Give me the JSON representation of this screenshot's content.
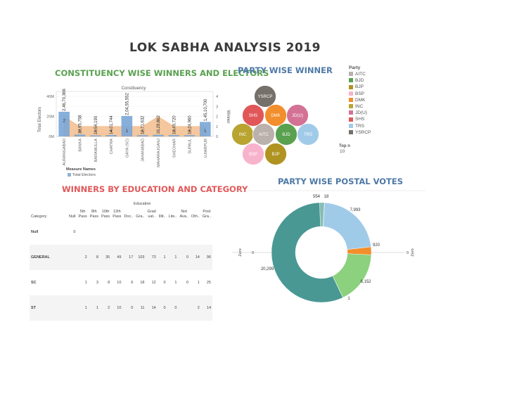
{
  "page_title": "LOK SABHA ANALYSIS 2019",
  "constituency": {
    "title": "CONSTITUENCY WISE WINNERS AND ELECTORS",
    "top_header": "Constituency",
    "y_left_label": "Total Electors",
    "y_right_label": "Winner",
    "left_ticks": [
      "40M",
      "20M",
      "0M"
    ],
    "right_ticks": [
      "4",
      "3",
      "2",
      "1",
      "0"
    ],
    "legend_title": "Measure Names",
    "legend_item": "Total Electors"
  },
  "chart_data": [
    {
      "type": "bar",
      "title": "CONSTITUENCY WISE WINNERS AND ELECTORS",
      "categories": [
        "AURANGABAD",
        "BANKA",
        "BARAMULLA",
        "CHATRA",
        "GAYA (SC)",
        "JAHANABAD",
        "MAHARAJGANJ",
        "SHEOHAR",
        "SUPAUL",
        "UJIARPUR"
      ],
      "series": [
        {
          "name": "Total Electors",
          "values": [
            24670366,
            1895758,
            1054190,
            1401744,
            20455552,
            1271632,
            1628312,
            1349720,
            1324960,
            14510700
          ]
        },
        {
          "name": "Winner",
          "values": [
            2,
            1,
            1,
            1,
            1,
            1,
            2,
            1,
            1,
            1
          ]
        }
      ],
      "value_labels": [
        "2,46,70,366",
        "18,95,758",
        "10,54,190",
        "14,01,744",
        "2,04,55,552",
        "12,71,632",
        "16,28,312",
        "13,49,720",
        "13,24,960",
        "1,45,10,700"
      ],
      "ylim": [
        0,
        45000000
      ],
      "y2lim": [
        0,
        4.5
      ],
      "xlabel": "Constituency",
      "ylabel": "Total Electors",
      "y2label": "Winner"
    },
    {
      "type": "bubble",
      "title": "PARTY WISE WINNER",
      "labels": [
        "YSRCP",
        "SHS",
        "DMK",
        "JD(U)",
        "INC",
        "AITC",
        "BJD",
        "TRS",
        "BSP",
        "BJP"
      ],
      "colors": [
        "#76706a",
        "#e15759",
        "#f28e2b",
        "#d37295",
        "#b9a432",
        "#bab0ac",
        "#59a14f",
        "#a0cbe8",
        "#f8b3cc",
        "#b09421"
      ]
    },
    {
      "type": "pie",
      "title": "PARTY WISE POSTAL VOTES",
      "labels": [
        "7,993",
        "920",
        "6,152",
        "1",
        "20,299",
        "554",
        "18"
      ],
      "values": [
        7993,
        920,
        6152,
        1,
        20299,
        554,
        18
      ],
      "colors": [
        "#a0cbe8",
        "#f28e2b",
        "#8cd17d",
        "#499894",
        "#499894",
        "#86bcb6",
        "#c4d1d4"
      ]
    }
  ],
  "party_legend": {
    "title": "Party",
    "items": [
      {
        "label": "AITC",
        "color": "#bab0ac"
      },
      {
        "label": "BJD",
        "color": "#59a14f"
      },
      {
        "label": "BJP",
        "color": "#b09421"
      },
      {
        "label": "BSP",
        "color": "#f8b3cc"
      },
      {
        "label": "DMK",
        "color": "#f28e2b"
      },
      {
        "label": "INC",
        "color": "#b9a432"
      },
      {
        "label": "JD(U)",
        "color": "#d37295"
      },
      {
        "label": "SHS",
        "color": "#e15759"
      },
      {
        "label": "TRS",
        "color": "#a0cbe8"
      },
      {
        "label": "YSRCP",
        "color": "#76706a"
      }
    ],
    "topn_label": "Top n",
    "topn_value": "10"
  },
  "party_winner": {
    "title": "PARTY WISE WINNER"
  },
  "education": {
    "title": "WINNERS BY EDUCATION AND CATEGORY",
    "top_header": "Education",
    "category_header": "Category",
    "columns": [
      [
        "Null"
      ],
      [
        "5th",
        "Pass"
      ],
      [
        "8th",
        "Pass"
      ],
      [
        "10th",
        "Pass"
      ],
      [
        "12th",
        "Pass"
      ],
      [
        "Doc.."
      ],
      [
        "Gra.."
      ],
      [
        "Grad",
        "uat.."
      ],
      [
        "Illit.."
      ],
      [
        "Lite.."
      ],
      [
        "Not",
        "Ava.."
      ],
      [
        "Oth.."
      ],
      [
        "Post",
        "Gra.."
      ]
    ],
    "rows": [
      {
        "category": "Null",
        "values": [
          "0",
          "",
          "",
          "",
          "",
          "",
          "",
          "",
          "",
          "",
          "",
          "",
          ""
        ]
      },
      {
        "category": "GENERAL",
        "values": [
          "",
          "2",
          "8",
          "35",
          "49",
          "17",
          "103",
          "73",
          "1",
          "1",
          "0",
          "14",
          "96"
        ]
      },
      {
        "category": "SC",
        "values": [
          "",
          "1",
          "3",
          "8",
          "10",
          "6",
          "18",
          "12",
          "0",
          "1",
          "0",
          "1",
          "25"
        ]
      },
      {
        "category": "ST",
        "values": [
          "",
          "1",
          "1",
          "2",
          "10",
          "0",
          "11",
          "14",
          "0",
          "0",
          "",
          "2",
          "14"
        ]
      }
    ]
  },
  "postal": {
    "title": "PARTY WISE POSTAL VOTES",
    "left_axis_label": "Zero",
    "right_axis_label": "Zero",
    "left_tick": "0",
    "right_tick": "0"
  }
}
